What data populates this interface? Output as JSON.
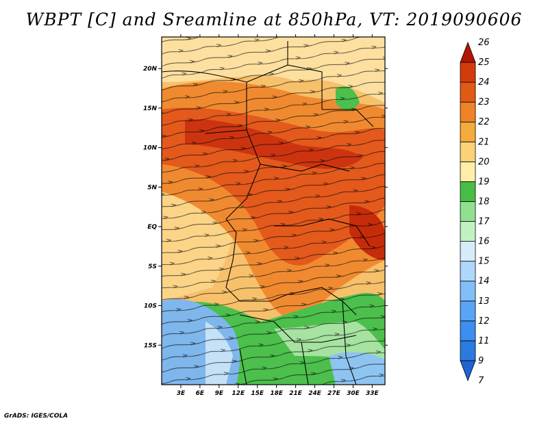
{
  "title": "WBPT [C] and Sreamline at 850hPa, VT: 2019090606",
  "credit": "GrADS: IGES/COLA",
  "map": {
    "lon_range": [
      0,
      35
    ],
    "lat_range": [
      -20,
      24
    ],
    "lon_ticks": [
      {
        "value": 3,
        "label": "3E"
      },
      {
        "value": 6,
        "label": "6E"
      },
      {
        "value": 9,
        "label": "9E"
      },
      {
        "value": 12,
        "label": "12E"
      },
      {
        "value": 15,
        "label": "15E"
      },
      {
        "value": 18,
        "label": "18E"
      },
      {
        "value": 21,
        "label": "21E"
      },
      {
        "value": 24,
        "label": "24E"
      },
      {
        "value": 27,
        "label": "27E"
      },
      {
        "value": 30,
        "label": "30E"
      },
      {
        "value": 33,
        "label": "33E"
      }
    ],
    "lat_ticks": [
      {
        "value": 20,
        "label": "20N"
      },
      {
        "value": 15,
        "label": "15N"
      },
      {
        "value": 10,
        "label": "10N"
      },
      {
        "value": 5,
        "label": "5N"
      },
      {
        "value": 0,
        "label": "EQ"
      },
      {
        "value": -5,
        "label": "5S"
      },
      {
        "value": -10,
        "label": "10S"
      },
      {
        "value": -15,
        "label": "15S"
      }
    ]
  },
  "colorbar": {
    "levels": [
      "7",
      "9",
      "11",
      "12",
      "13",
      "14",
      "15",
      "16",
      "17",
      "18",
      "19",
      "20",
      "21",
      "22",
      "23",
      "24",
      "25",
      "26"
    ],
    "colors": [
      "#1e64d2",
      "#2a7ae0",
      "#3c8ff0",
      "#5aa4f5",
      "#82bef8",
      "#afd6fb",
      "#d6ecfa",
      "#c2f0c2",
      "#90e090",
      "#48be48",
      "#ffefa8",
      "#fcd278",
      "#f5aa3c",
      "#f08228",
      "#e05a14",
      "#d23c0a",
      "#b41400"
    ]
  },
  "field_colors": {
    "blue": "#7fb6ec",
    "light_blue": "#c5e1f8",
    "green": "#4cbf4c",
    "light_green": "#a6e2a0",
    "yellow": "#fde7a2",
    "light_orange": "#f9cf7c",
    "orange": "#f29432",
    "red_orange": "#e6601e",
    "red": "#cc3410"
  }
}
